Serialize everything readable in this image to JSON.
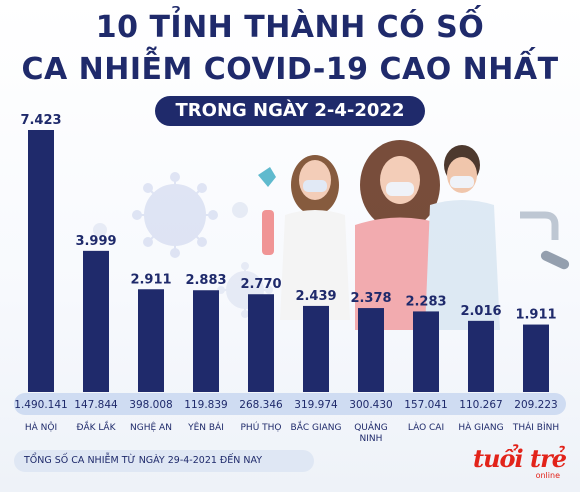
{
  "header": {
    "title_line1": "10 TỈNH THÀNH CÓ SỐ",
    "title_line2": "CA NHIỄM COVID-19 CAO NHẤT",
    "date_badge": "TRONG NGÀY 2-4-2022"
  },
  "legend": {
    "total_label": "TỔNG SỐ CA NHIỄM TỪ NGÀY 29-4-2021 ĐẾN NAY"
  },
  "brand": {
    "name": "tuổi trẻ",
    "sub": "online"
  },
  "colors": {
    "bar": "#1f2a6b",
    "total_pill": "#cfdcf2",
    "text": "#1f2a6b",
    "brand": "#e2231a"
  },
  "chart_data": {
    "type": "bar",
    "categories": [
      "HÀ NỘI",
      "ĐẮK LẮK",
      "NGHỆ AN",
      "YÊN BÁI",
      "PHÚ THỌ",
      "BẮC GIANG",
      "QUẢNG NINH",
      "LÀO CAI",
      "HÀ GIANG",
      "THÁI BÌNH"
    ],
    "values": [
      7423,
      3999,
      2911,
      2883,
      2770,
      2439,
      2378,
      2283,
      2016,
      1911
    ],
    "value_labels": [
      "7.423",
      "3.999",
      "2.911",
      "2.883",
      "2.770",
      "2.439",
      "2.378",
      "2.283",
      "2.016",
      "1.911"
    ],
    "totals": [
      1490141,
      147844,
      398008,
      119839,
      268346,
      319974,
      300430,
      157041,
      110267,
      209223
    ],
    "total_labels": [
      "1.490.141",
      "147.844",
      "398.008",
      "119.839",
      "268.346",
      "319.974",
      "300.430",
      "157.041",
      "110.267",
      "209.223"
    ],
    "ylim": [
      0,
      7423
    ],
    "title": "",
    "xlabel": "",
    "ylabel": ""
  }
}
